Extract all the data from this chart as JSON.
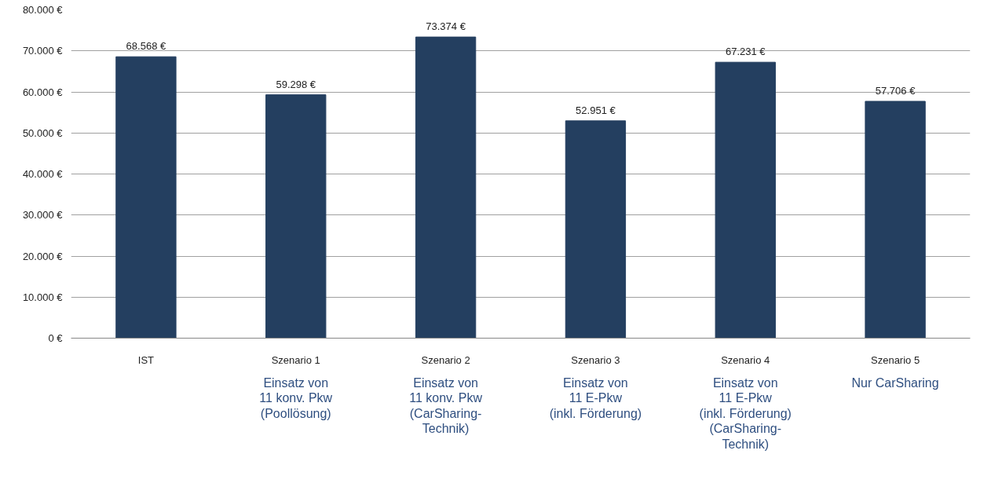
{
  "chart_data": {
    "type": "bar",
    "categories": [
      "IST",
      "Szenario 1",
      "Szenario 2",
      "Szenario 3",
      "Szenario 4",
      "Szenario 5"
    ],
    "values": [
      68568,
      59298,
      73374,
      52951,
      67231,
      57706
    ],
    "value_labels": [
      "68.568 €",
      "59.298 €",
      "73.374 €",
      "52.951 €",
      "67.231 €",
      "57.706 €"
    ],
    "color": "#243f60",
    "ylim": [
      0,
      80000
    ],
    "yticks": [
      {
        "value": 0,
        "label": "0 €"
      },
      {
        "value": 10000,
        "label": "10.000 €"
      },
      {
        "value": 20000,
        "label": "20.000 €"
      },
      {
        "value": 30000,
        "label": "30.000 €"
      },
      {
        "value": 40000,
        "label": "40.000 €"
      },
      {
        "value": 50000,
        "label": "50.000 €"
      },
      {
        "value": 60000,
        "label": "60.000 €"
      },
      {
        "value": 70000,
        "label": "70.000 €"
      },
      {
        "value": 80000,
        "label": "80.000 €"
      }
    ],
    "grid": "y",
    "annotations": [
      "Einsatz von\n11 konv. Pkw\n(Poollösung)",
      "Einsatz von\n11 konv. Pkw\n(CarSharing-\nTechnik)",
      "Einsatz von\n11 E-Pkw\n(inkl. Förderung)",
      "Einsatz von\n11 E-Pkw\n(inkl. Förderung)\n(CarSharing-\nTechnik)",
      "Nur CarSharing"
    ]
  }
}
